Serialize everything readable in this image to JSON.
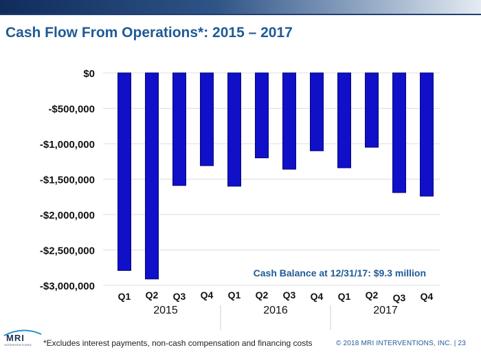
{
  "page": {
    "title": "Cash Flow From Operations*:   2015 – 2017",
    "footnote": "*Excludes interest payments, non-cash compensation and financing costs",
    "copyright": "© 2018 MRI INTERVENTIONS, INC.   |   23",
    "logo_text": "MRI",
    "logo_sub": "INTERVENTIONS"
  },
  "colors": {
    "bar": "#1010c8",
    "bar_edge": "#06067a",
    "title": "#1f5a96",
    "annotation": "#1f5a96",
    "gridline": "#dcdcdc"
  },
  "chart_data": {
    "type": "bar",
    "title": "Cash Flow From Operations*:   2015 – 2017",
    "categories": [
      "Q1",
      "Q2",
      "Q3",
      "Q4",
      "Q1",
      "Q2",
      "Q3",
      "Q4",
      "Q1",
      "Q2",
      "Q3",
      "Q4"
    ],
    "groups": [
      {
        "label": "2015",
        "start": 0,
        "end": 3
      },
      {
        "label": "2016",
        "start": 4,
        "end": 7
      },
      {
        "label": "2017",
        "start": 8,
        "end": 11
      }
    ],
    "series": [
      {
        "name": "Cash Flow From Operations",
        "values": [
          -2790000,
          -2910000,
          -1590000,
          -1310000,
          -1600000,
          -1200000,
          -1360000,
          -1100000,
          -1340000,
          -1050000,
          -1690000,
          -1740000
        ]
      }
    ],
    "ylim": [
      -3000000,
      0
    ],
    "yticks": [
      0,
      -500000,
      -1000000,
      -1500000,
      -2000000,
      -2500000,
      -3000000
    ],
    "ytick_labels": [
      "$0",
      "-$500,000",
      "-$1,000,000",
      "-$1,500,000",
      "-$2,000,000",
      "-$2,500,000",
      "-$3,000,000"
    ],
    "annotation": "Cash Balance at 12/31/17: $9.3 million",
    "xlabel": "",
    "ylabel": "",
    "grid": true
  }
}
